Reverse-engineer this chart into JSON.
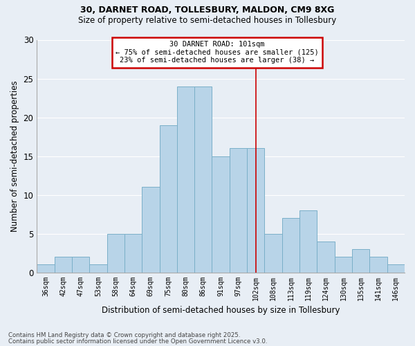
{
  "title1": "30, DARNET ROAD, TOLLESBURY, MALDON, CM9 8XG",
  "title2": "Size of property relative to semi-detached houses in Tollesbury",
  "xlabel": "Distribution of semi-detached houses by size in Tollesbury",
  "ylabel": "Number of semi-detached properties",
  "footnote1": "Contains HM Land Registry data © Crown copyright and database right 2025.",
  "footnote2": "Contains public sector information licensed under the Open Government Licence v3.0.",
  "bins": [
    "36sqm",
    "42sqm",
    "47sqm",
    "53sqm",
    "58sqm",
    "64sqm",
    "69sqm",
    "75sqm",
    "80sqm",
    "86sqm",
    "91sqm",
    "97sqm",
    "102sqm",
    "108sqm",
    "113sqm",
    "119sqm",
    "124sqm",
    "130sqm",
    "135sqm",
    "141sqm",
    "146sqm"
  ],
  "values": [
    1,
    2,
    2,
    1,
    5,
    5,
    11,
    19,
    24,
    24,
    15,
    16,
    16,
    5,
    7,
    8,
    4,
    2,
    3,
    2,
    1
  ],
  "bar_color": "#b8d4e8",
  "bar_edge_color": "#7aafc8",
  "annotation_title": "30 DARNET ROAD: 101sqm",
  "annotation_line1": "← 75% of semi-detached houses are smaller (125)",
  "annotation_line2": "23% of semi-detached houses are larger (38) →",
  "annotation_box_facecolor": "#ffffff",
  "annotation_box_edgecolor": "#cc0000",
  "vline_color": "#cc0000",
  "vline_x_index": 12,
  "ylim": [
    0,
    30
  ],
  "yticks": [
    0,
    5,
    10,
    15,
    20,
    25,
    30
  ],
  "bg_color": "#e8eef5",
  "grid_color": "#ffffff",
  "title1_fontsize": 9,
  "title2_fontsize": 8.5
}
